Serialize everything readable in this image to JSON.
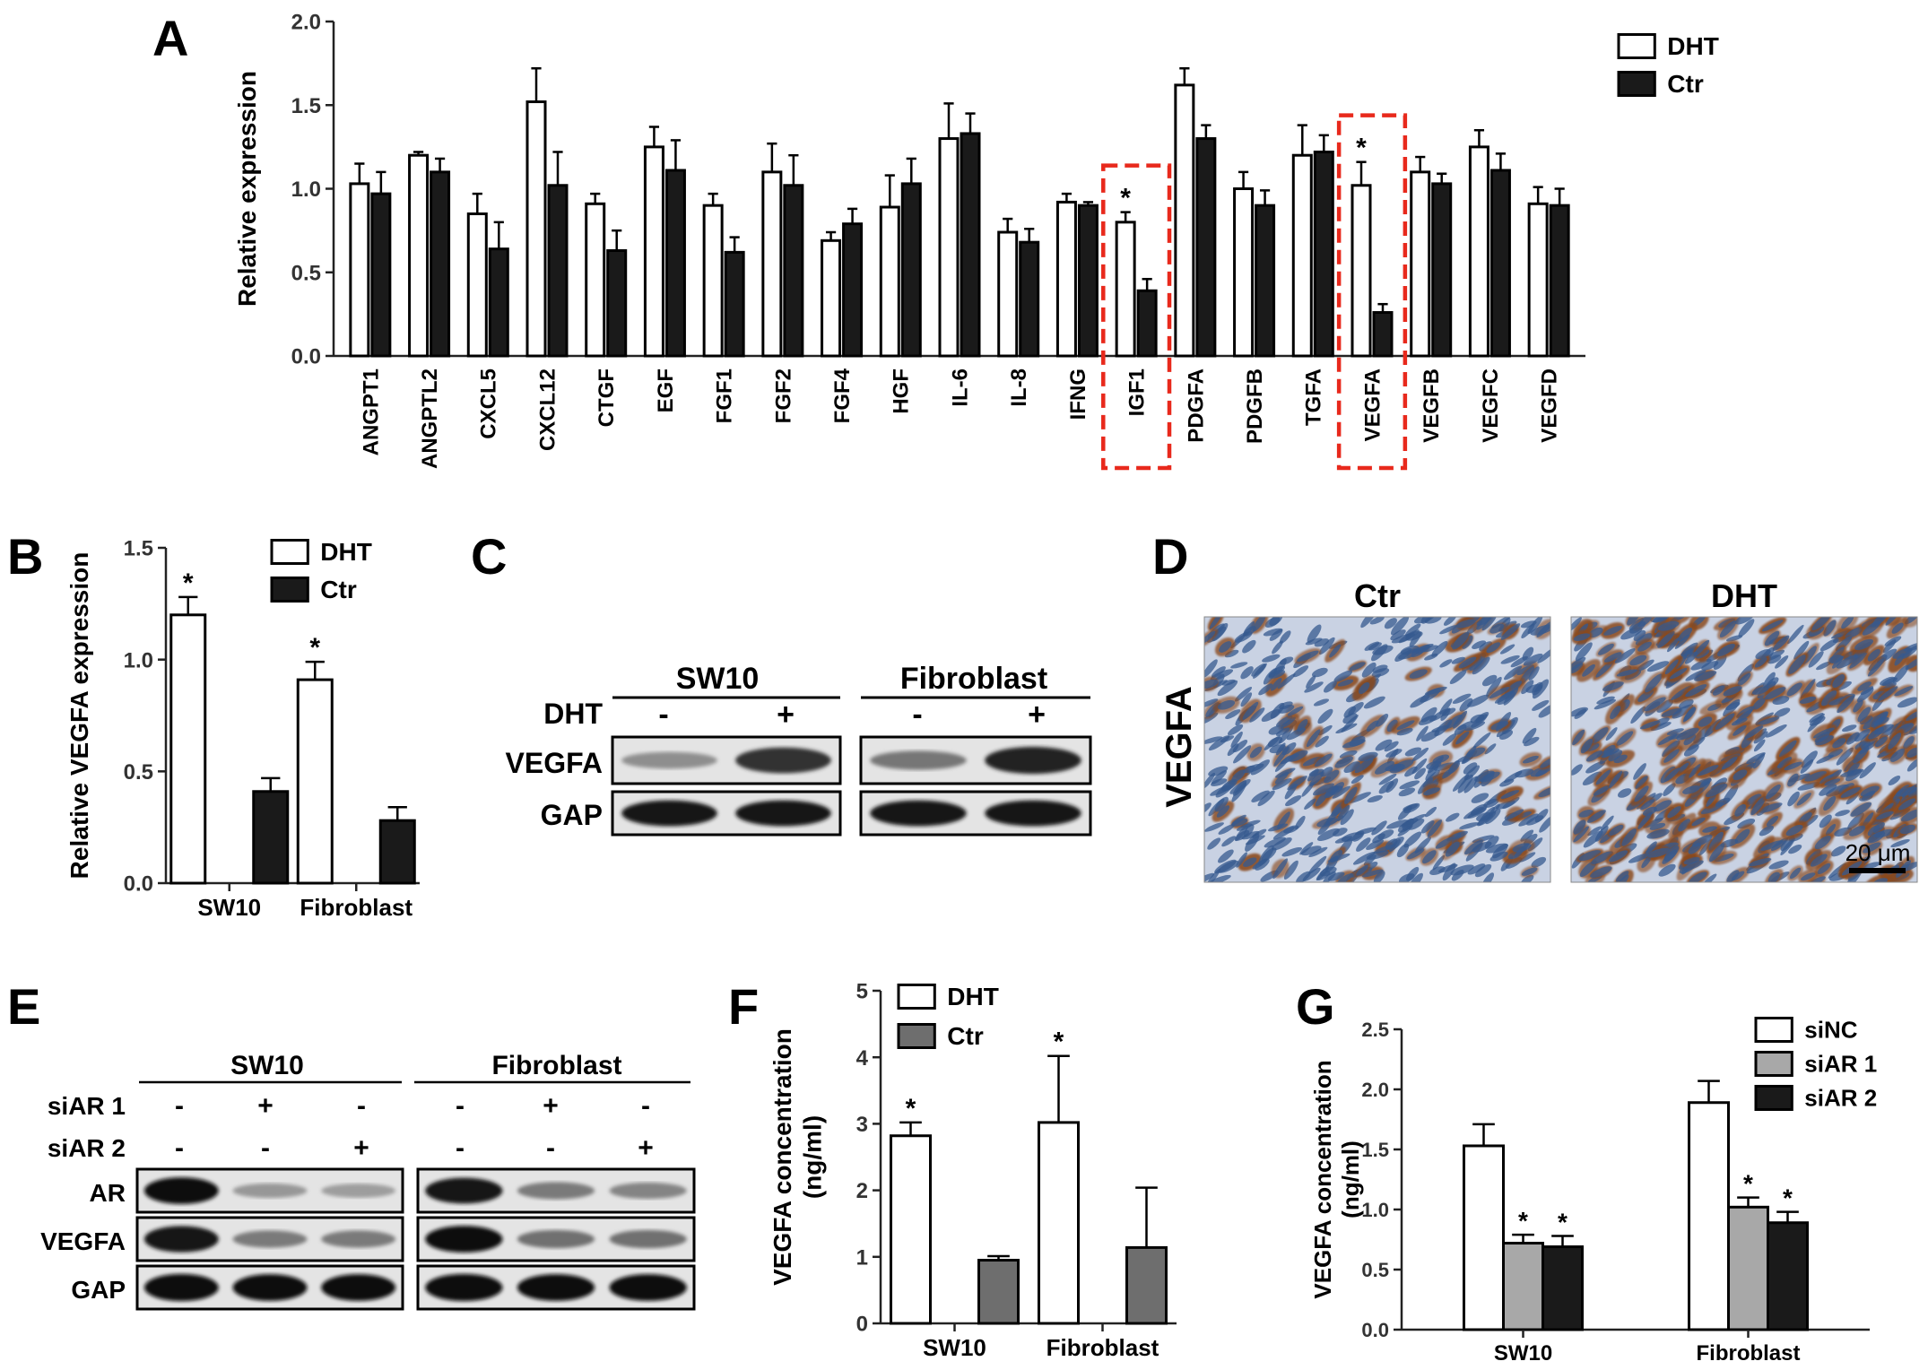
{
  "panels": {
    "A": "A",
    "B": "B",
    "C": "C",
    "D": "D",
    "E": "E",
    "F": "F",
    "G": "G"
  },
  "colors": {
    "dht_fill": "#ffffff",
    "ctr_fill": "#1a1a1a",
    "ctr_fill_F": "#6e6e6e",
    "siAR1_fill": "#a8a8a8",
    "highlight_box": "#e8291c",
    "ihc_background": "#c9d2e3",
    "ihc_nucleus": "#35598f",
    "ihc_brown": "#8a4a1f"
  },
  "chart_data": [
    {
      "panel": "A",
      "type": "bar",
      "ylabel": "Relative expression",
      "ylim": [
        0,
        2.0
      ],
      "yticks": [
        "0.0",
        "0.5",
        "1.0",
        "1.5",
        "2.0"
      ],
      "grid": false,
      "legend_position": "top-right",
      "categories": [
        "ANGPT1",
        "ANGPTL2",
        "CXCL5",
        "CXCL12",
        "CTGF",
        "EGF",
        "FGF1",
        "FGF2",
        "FGF4",
        "HGF",
        "IL-6",
        "IL-8",
        "IFNG",
        "IGF1",
        "PDGFA",
        "PDGFB",
        "TGFA",
        "VEGFA",
        "VEGFB",
        "VEGFC",
        "VEGFD"
      ],
      "series": [
        {
          "name": "DHT",
          "fill": "#ffffff",
          "values": [
            1.03,
            1.2,
            0.85,
            1.52,
            0.91,
            1.25,
            0.9,
            1.1,
            0.69,
            0.89,
            1.3,
            0.74,
            0.92,
            0.8,
            1.62,
            1.0,
            1.2,
            1.02,
            1.1,
            1.25,
            0.91
          ],
          "errors": [
            0.12,
            0.02,
            0.12,
            0.2,
            0.06,
            0.12,
            0.07,
            0.17,
            0.05,
            0.19,
            0.21,
            0.08,
            0.05,
            0.06,
            0.1,
            0.1,
            0.18,
            0.14,
            0.09,
            0.1,
            0.1
          ]
        },
        {
          "name": "Ctr",
          "fill": "#1a1a1a",
          "values": [
            0.97,
            1.1,
            0.64,
            1.02,
            0.63,
            1.11,
            0.62,
            1.02,
            0.79,
            1.03,
            1.33,
            0.68,
            0.9,
            0.39,
            1.3,
            0.9,
            1.22,
            0.26,
            1.03,
            1.11,
            0.9
          ],
          "errors": [
            0.13,
            0.08,
            0.16,
            0.2,
            0.12,
            0.18,
            0.09,
            0.18,
            0.09,
            0.15,
            0.12,
            0.08,
            0.02,
            0.07,
            0.08,
            0.09,
            0.1,
            0.05,
            0.06,
            0.1,
            0.1
          ]
        }
      ],
      "significance": [
        {
          "category": "IGF1",
          "label": "*"
        },
        {
          "category": "VEGFA",
          "label": "*"
        }
      ],
      "highlighted": [
        "IGF1",
        "VEGFA"
      ]
    },
    {
      "panel": "B",
      "type": "bar",
      "ylabel": "Relative VEGFA expression",
      "ylim": [
        0,
        1.5
      ],
      "yticks": [
        "0.0",
        "0.5",
        "1.0",
        "1.5"
      ],
      "grid": false,
      "legend_position": "top-right",
      "categories": [
        "SW10",
        "Fibroblast"
      ],
      "series": [
        {
          "name": "DHT",
          "fill": "#ffffff",
          "values": [
            1.2,
            0.91
          ],
          "errors": [
            0.08,
            0.08
          ]
        },
        {
          "name": "Ctr",
          "fill": "#1a1a1a",
          "values": [
            0.41,
            0.28
          ],
          "errors": [
            0.06,
            0.06
          ]
        }
      ],
      "significance": [
        {
          "category": "SW10",
          "label": "*"
        },
        {
          "category": "Fibroblast",
          "label": "*"
        }
      ]
    },
    {
      "panel": "F",
      "type": "bar",
      "ylabel": "VEGFA concentration (ng/ml)",
      "ylabel_lines": [
        "VEGFA concentration",
        "(ng/ml)"
      ],
      "ylim": [
        0,
        5
      ],
      "yticks": [
        "0",
        "1",
        "2",
        "3",
        "4",
        "5"
      ],
      "grid": false,
      "legend_position": "top-left",
      "categories": [
        "SW10",
        "Fibroblast"
      ],
      "series": [
        {
          "name": "DHT",
          "fill": "#ffffff",
          "values": [
            2.82,
            3.02
          ],
          "errors": [
            0.2,
            1.0
          ]
        },
        {
          "name": "Ctr",
          "fill": "#6e6e6e",
          "values": [
            0.95,
            1.14
          ],
          "errors": [
            0.06,
            0.9
          ]
        }
      ],
      "significance": [
        {
          "category": "SW10",
          "label": "*"
        },
        {
          "category": "Fibroblast",
          "label": "*"
        }
      ]
    },
    {
      "panel": "G",
      "type": "bar",
      "ylabel": "VEGFA concentration (ng/ml)",
      "ylabel_lines": [
        "VEGFA concentration",
        "(ng/ml)"
      ],
      "ylim": [
        0,
        2.5
      ],
      "yticks": [
        "0.0",
        "0.5",
        "1.0",
        "1.5",
        "2.0",
        "2.5"
      ],
      "grid": false,
      "legend_position": "top-right",
      "categories": [
        "SW10",
        "Fibroblast"
      ],
      "series": [
        {
          "name": "siNC",
          "fill": "#ffffff",
          "values": [
            1.53,
            1.89
          ],
          "errors": [
            0.18,
            0.18
          ]
        },
        {
          "name": "siAR 1",
          "fill": "#a8a8a8",
          "values": [
            0.72,
            1.02
          ],
          "errors": [
            0.07,
            0.08
          ]
        },
        {
          "name": "siAR 2",
          "fill": "#1a1a1a",
          "values": [
            0.69,
            0.89
          ],
          "errors": [
            0.09,
            0.09
          ]
        }
      ],
      "significance": [
        {
          "category": "SW10",
          "series": "siAR 1",
          "label": "*"
        },
        {
          "category": "SW10",
          "series": "siAR 2",
          "label": "*"
        },
        {
          "category": "Fibroblast",
          "series": "siAR 1",
          "label": "*"
        },
        {
          "category": "Fibroblast",
          "series": "siAR 2",
          "label": "*"
        }
      ]
    }
  ],
  "westernC": {
    "groups": [
      "SW10",
      "Fibroblast"
    ],
    "treatment_label": "DHT",
    "lane_signs": [
      "-",
      "+",
      "-",
      "+"
    ],
    "rows": [
      {
        "label": "VEGFA",
        "intensities": [
          0.3,
          0.78,
          0.42,
          0.85
        ]
      },
      {
        "label": "GAP",
        "intensities": [
          0.9,
          0.9,
          0.9,
          0.9
        ]
      }
    ]
  },
  "westernE": {
    "groups": [
      "SW10",
      "Fibroblast"
    ],
    "conditions": [
      {
        "label": "siAR 1",
        "signs": [
          "-",
          "+",
          "-",
          "-",
          "+",
          "-"
        ]
      },
      {
        "label": "siAR 2",
        "signs": [
          "-",
          "-",
          "+",
          "-",
          "-",
          "+"
        ]
      }
    ],
    "rows": [
      {
        "label": "AR",
        "intensities": [
          0.95,
          0.25,
          0.22,
          0.9,
          0.4,
          0.35
        ]
      },
      {
        "label": "VEGFA",
        "intensities": [
          0.92,
          0.4,
          0.4,
          0.95,
          0.45,
          0.45
        ]
      },
      {
        "label": "GAP",
        "intensities": [
          0.98,
          0.95,
          0.95,
          0.98,
          0.95,
          0.95
        ]
      }
    ]
  },
  "ihcD": {
    "row_label": "VEGFA",
    "images": [
      {
        "label": "Ctr",
        "brown_density": 0.18
      },
      {
        "label": "DHT",
        "brown_density": 0.62
      }
    ],
    "scale_bar": "20 μm"
  }
}
